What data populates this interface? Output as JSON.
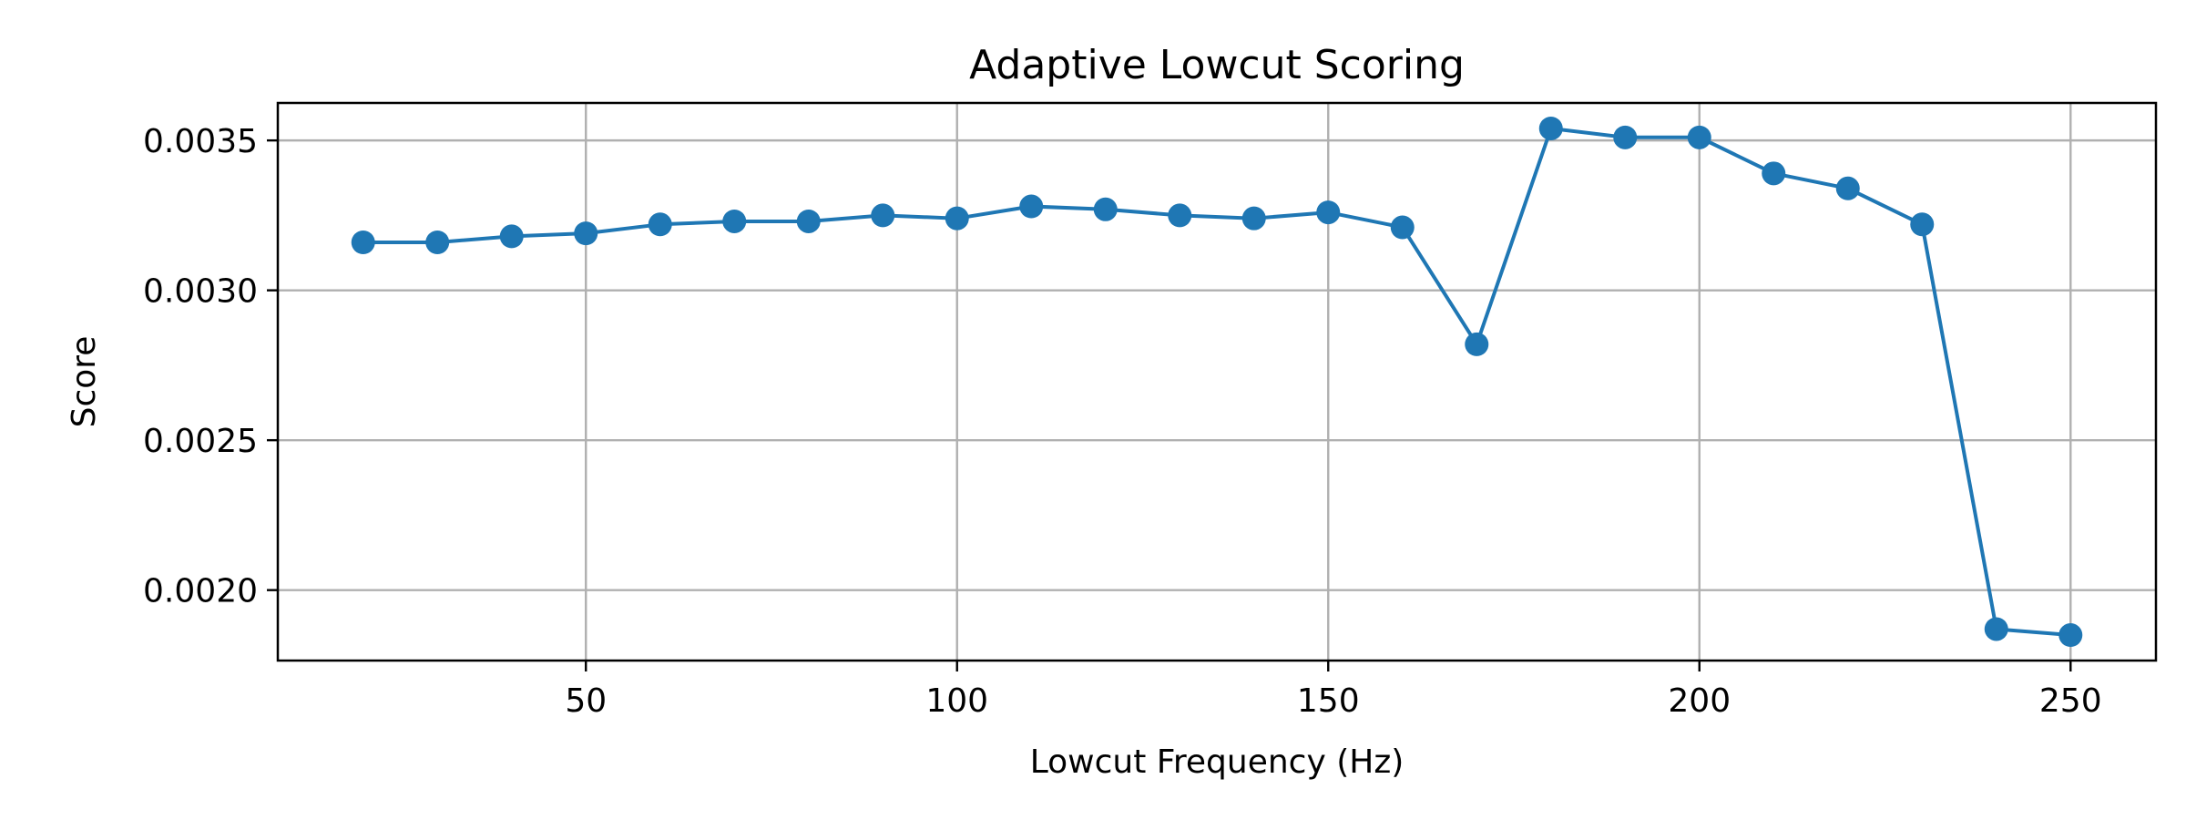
{
  "chart_data": {
    "type": "line",
    "title": "Adaptive Lowcut Scoring",
    "xlabel": "Lowcut Frequency (Hz)",
    "ylabel": "Score",
    "xlim": [
      8.5,
      261.5
    ],
    "ylim": [
      0.001765,
      0.003625
    ],
    "xticks": [
      50,
      100,
      150,
      200,
      250
    ],
    "xtick_labels": [
      "50",
      "100",
      "150",
      "200",
      "250"
    ],
    "yticks": [
      0.002,
      0.0025,
      0.003,
      0.0035
    ],
    "ytick_labels": [
      "0.0020",
      "0.0025",
      "0.0030",
      "0.0035"
    ],
    "grid": true,
    "legend": "none",
    "series": [
      {
        "color": "#1f77b4",
        "marker": "circle",
        "x": [
          20,
          30,
          40,
          50,
          60,
          70,
          80,
          90,
          100,
          110,
          120,
          130,
          140,
          150,
          160,
          170,
          180,
          190,
          200,
          210,
          220,
          230,
          240,
          250
        ],
        "y": [
          0.00316,
          0.00316,
          0.00318,
          0.00319,
          0.00322,
          0.00323,
          0.00323,
          0.00325,
          0.00324,
          0.00328,
          0.00327,
          0.00325,
          0.00324,
          0.00326,
          0.00321,
          0.00282,
          0.00354,
          0.00351,
          0.00351,
          0.00339,
          0.00334,
          0.00322,
          0.00187,
          0.00185
        ]
      }
    ]
  }
}
